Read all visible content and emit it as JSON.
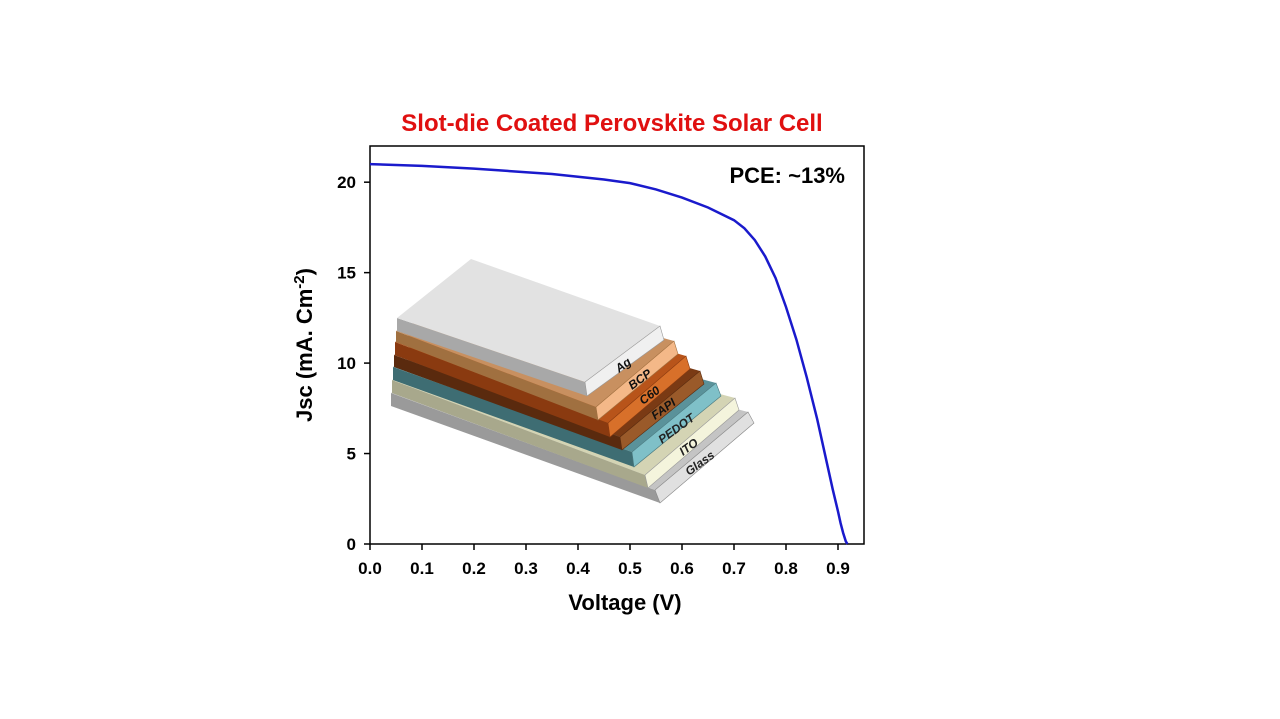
{
  "chart_data": {
    "type": "line",
    "title": "Slot-die Coated Perovskite Solar Cell",
    "title_color": "#e01010",
    "annotation": "PCE: ~13%",
    "xlabel": "Voltage (V)",
    "ylabel_main": "Jsc (mA. Cm",
    "ylabel_sup": "-2",
    "ylabel_close": ")",
    "xlim": [
      0.0,
      0.95
    ],
    "ylim": [
      0,
      22
    ],
    "x_ticks": [
      "0.0",
      "0.1",
      "0.2",
      "0.3",
      "0.4",
      "0.5",
      "0.6",
      "0.7",
      "0.8",
      "0.9"
    ],
    "y_ticks": [
      "0",
      "5",
      "10",
      "15",
      "20"
    ],
    "grid": false,
    "series": [
      {
        "color": "#1a1acc",
        "x": [
          0.0,
          0.05,
          0.1,
          0.15,
          0.2,
          0.25,
          0.3,
          0.35,
          0.4,
          0.45,
          0.5,
          0.55,
          0.6,
          0.65,
          0.7,
          0.72,
          0.74,
          0.76,
          0.78,
          0.8,
          0.82,
          0.84,
          0.86,
          0.87,
          0.88,
          0.89,
          0.9,
          0.905,
          0.91,
          0.915,
          0.918
        ],
        "y": [
          21.0,
          20.95,
          20.9,
          20.82,
          20.75,
          20.65,
          20.55,
          20.45,
          20.3,
          20.15,
          19.95,
          19.6,
          19.15,
          18.6,
          17.9,
          17.45,
          16.8,
          15.9,
          14.7,
          13.1,
          11.3,
          9.2,
          6.9,
          5.6,
          4.3,
          3.0,
          1.8,
          1.15,
          0.6,
          0.15,
          0.0
        ]
      }
    ]
  },
  "inset": {
    "layers": [
      {
        "label": "Ag",
        "color": "#d9d9d9"
      },
      {
        "label": "BCP",
        "color": "#f0a868"
      },
      {
        "label": "C60",
        "color": "#c8601c"
      },
      {
        "label": "FAPI",
        "color": "#7a3a14"
      },
      {
        "label": "PEDOT",
        "color": "#4f8f98"
      },
      {
        "label": "ITO",
        "color": "#e8e8c8"
      },
      {
        "label": "Glass",
        "color": "#b8b8b8"
      }
    ]
  }
}
